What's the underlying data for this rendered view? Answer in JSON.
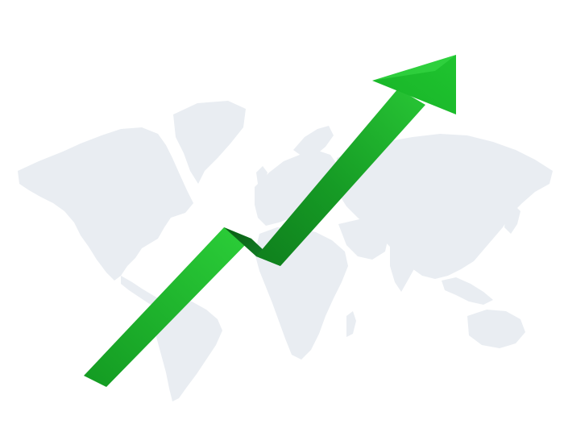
{
  "illustration": {
    "subject": "growth-arrow-over-world-map",
    "background_color": "#ffffff",
    "map_color": "#e9edf2",
    "arrow_colors": {
      "light": "#2fd13c",
      "main": "#1ca82a",
      "dark": "#0d6a17",
      "shadow_fold": "#0e7a1a"
    }
  }
}
